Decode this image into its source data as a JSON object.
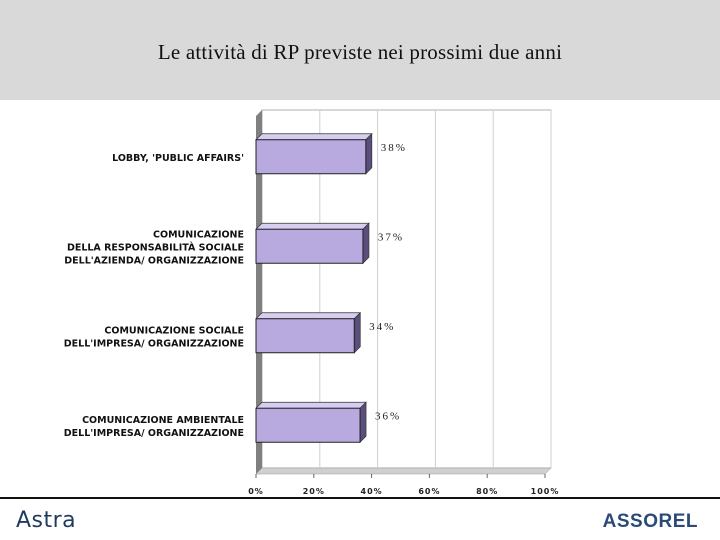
{
  "header": {
    "title": "Le attività di RP previste nei prossimi due anni"
  },
  "footer": {
    "logo_left": "Astra",
    "logo_right": "ASSOREL"
  },
  "colors": {
    "bar_fill": "#b8a9df",
    "bar_side": "#5a4f7c",
    "wall": "#808080",
    "grid": "#cfcfcf"
  },
  "chart_data": {
    "type": "bar",
    "orientation": "horizontal",
    "categories": [
      [
        "LOBBY, 'PUBLIC AFFAIRS'"
      ],
      [
        "COMUNICAZIONE",
        "DELLA RESPONSABILITÀ SOCIALE",
        "DELL'AZIENDA/ ORGANIZZAZIONE"
      ],
      [
        "COMUNICAZIONE SOCIALE",
        "DELL'IMPRESA/ ORGANIZZAZIONE"
      ],
      [
        "COMUNICAZIONE  AMBIENTALE",
        "DELL'IMPRESA/ ORGANIZZAZIONE"
      ]
    ],
    "values": [
      38,
      37,
      34,
      36
    ],
    "value_labels": [
      "38%",
      "37%",
      "34%",
      "36%"
    ],
    "xlim": [
      0,
      100
    ],
    "xticks": [
      "0%",
      "20%",
      "40%",
      "60%",
      "80%",
      "100%"
    ],
    "grid": true
  }
}
